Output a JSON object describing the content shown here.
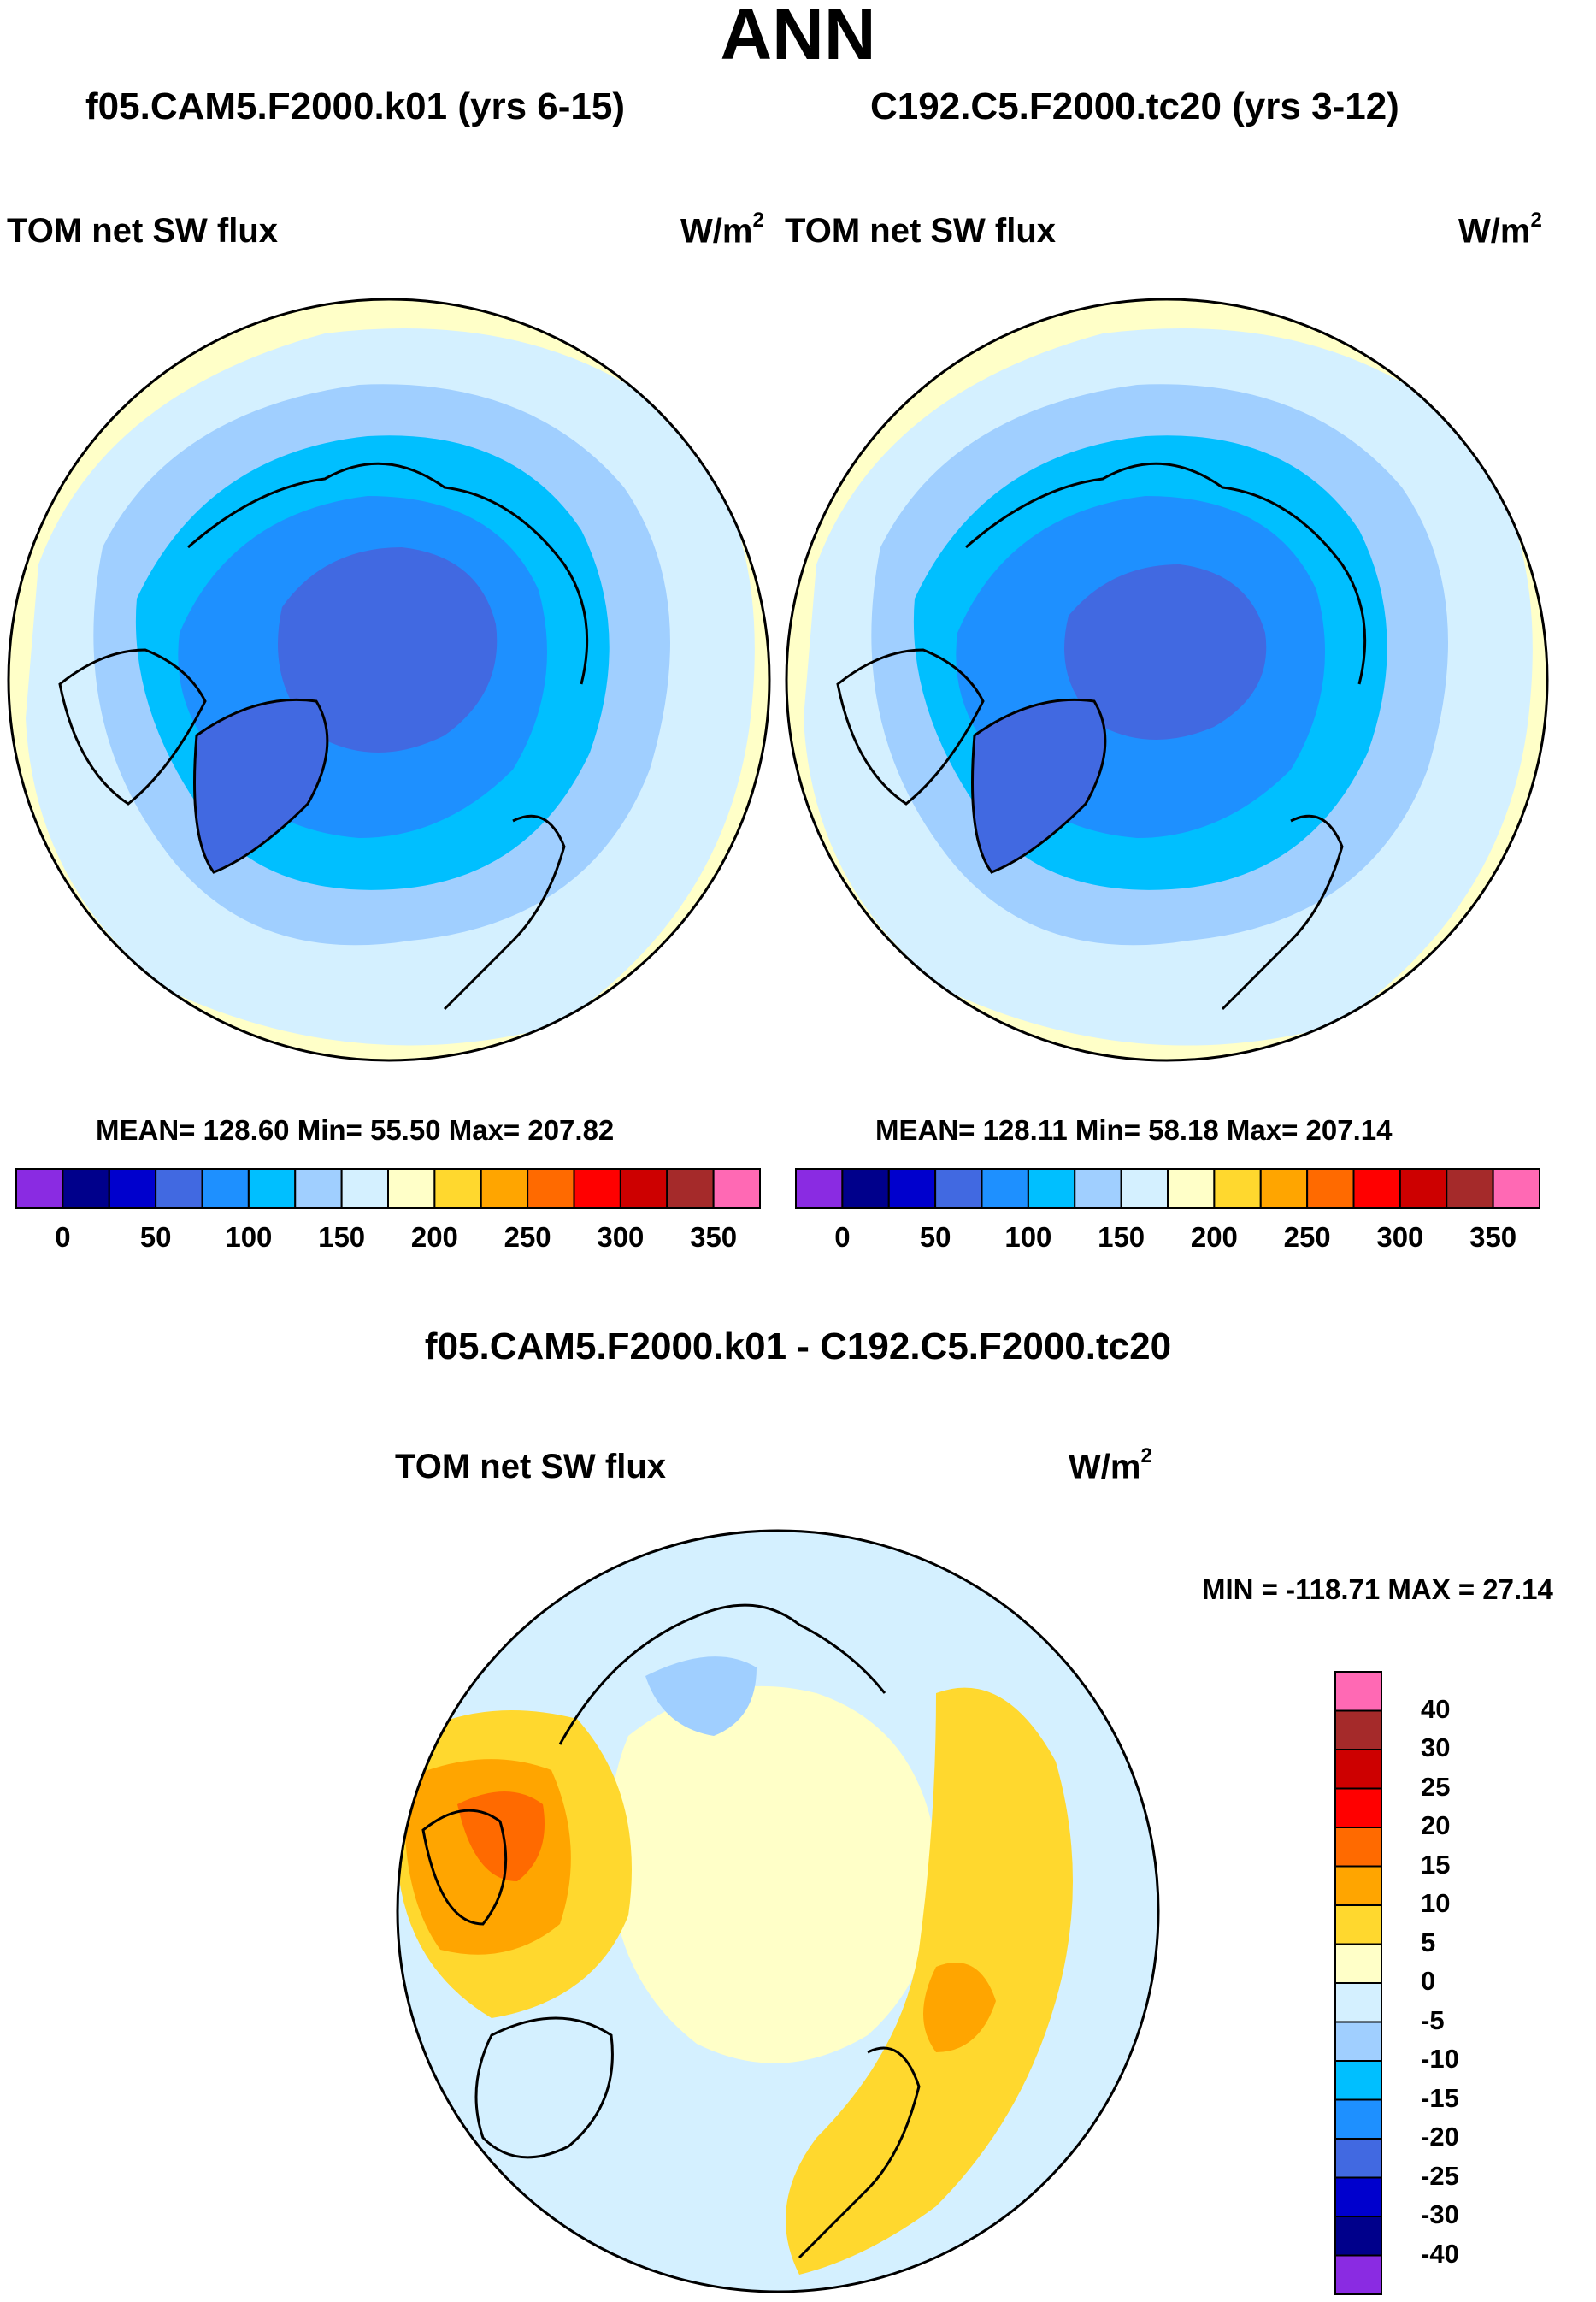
{
  "title": "ANN",
  "panels": [
    {
      "case": "f05.CAM5.F2000.k01 (yrs 6-15)",
      "variable": "TOM net SW flux",
      "units_base": "W/m",
      "units_exp": "2",
      "stats": "MEAN= 128.60  Min=  55.50  Max= 207.82"
    },
    {
      "case": "C192.C5.F2000.tc20 (yrs 3-12)",
      "variable": "TOM net SW flux",
      "units_base": "W/m",
      "units_exp": "2",
      "stats": "MEAN= 128.11  Min=  58.18  Max= 207.14"
    }
  ],
  "colorbar_top": {
    "colors": [
      "#8a2be2",
      "#00008b",
      "#0000cd",
      "#4169e1",
      "#1e90ff",
      "#00bfff",
      "#a0cfff",
      "#d4f0ff",
      "#ffffc8",
      "#ffd82e",
      "#ffa500",
      "#ff6a00",
      "#ff0000",
      "#cd0000",
      "#a52a2a",
      "#ff69b4"
    ],
    "tick_labels": [
      "0",
      "50",
      "100",
      "150",
      "200",
      "250",
      "300",
      "350"
    ]
  },
  "difference": {
    "title": "f05.CAM5.F2000.k01 - C192.C5.F2000.tc20",
    "variable": "TOM net SW flux",
    "units_base": "W/m",
    "units_exp": "2",
    "minmax": "MIN = -118.71 MAX =  27.14",
    "colorbar": {
      "colors": [
        "#ff69b4",
        "#a52a2a",
        "#cd0000",
        "#ff0000",
        "#ff6a00",
        "#ffa500",
        "#ffd82e",
        "#ffffc8",
        "#d4f0ff",
        "#a0cfff",
        "#00bfff",
        "#1e90ff",
        "#4169e1",
        "#0000cd",
        "#00008b",
        "#8a2be2"
      ],
      "tick_labels": [
        "40",
        "30",
        "25",
        "20",
        "15",
        "10",
        "5",
        "0",
        "-5",
        "-10",
        "-15",
        "-20",
        "-25",
        "-30",
        "-40"
      ]
    }
  },
  "map_colors": {
    "outer": "#ffffc8",
    "light": "#d4f0ff",
    "pale_blue": "#a0cfff",
    "sky": "#00bfff",
    "mid": "#1e90ff",
    "core": "#4169e1",
    "coast": "#000000",
    "diff_yellow": "#ffd82e",
    "diff_orange": "#ffa500",
    "diff_darkorange": "#ff6a00",
    "diff_pale": "#ffffc8",
    "diff_light": "#d4f0ff",
    "diff_blue": "#a0cfff"
  }
}
